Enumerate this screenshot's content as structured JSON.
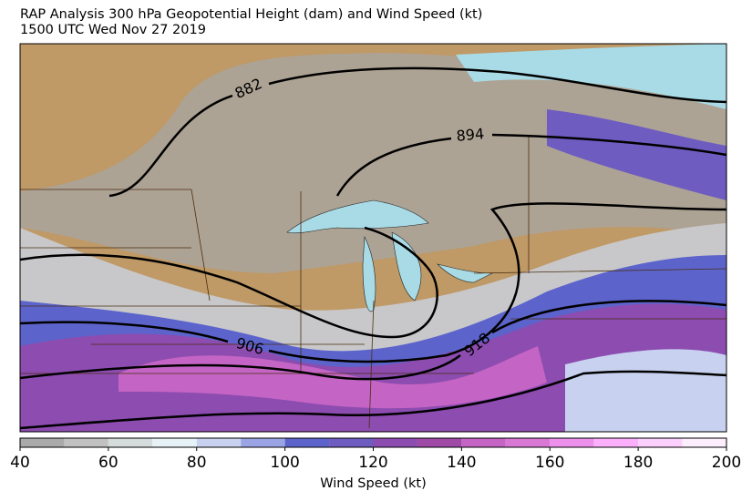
{
  "title": [
    "RAP Analysis 300 hPa Geopotential Height (dam) and Wind Speed (kt)",
    "1500 UTC Wed Nov 27 2019"
  ],
  "map": {
    "contour_labels": [
      882,
      894,
      906,
      918
    ]
  },
  "colorbar": {
    "label": "Wind Speed (kt)",
    "bins": [
      40,
      50,
      60,
      70,
      80,
      90,
      100,
      110,
      120,
      130,
      140,
      150,
      160,
      170,
      180,
      190,
      200
    ],
    "colors": [
      "#a9aaa9",
      "#c1c1c1",
      "#d6dcdc",
      "#e6f2f5",
      "#c8d2f0",
      "#9aa4e4",
      "#5c64cc",
      "#6e5cc0",
      "#8c4cb0",
      "#a04aa8",
      "#c464c4",
      "#d878d4",
      "#ec90ec",
      "#fcb0fc",
      "#fcd0fc",
      "#fceefc"
    ],
    "ticks": [
      40,
      60,
      80,
      100,
      120,
      140,
      160,
      180,
      200
    ]
  }
}
